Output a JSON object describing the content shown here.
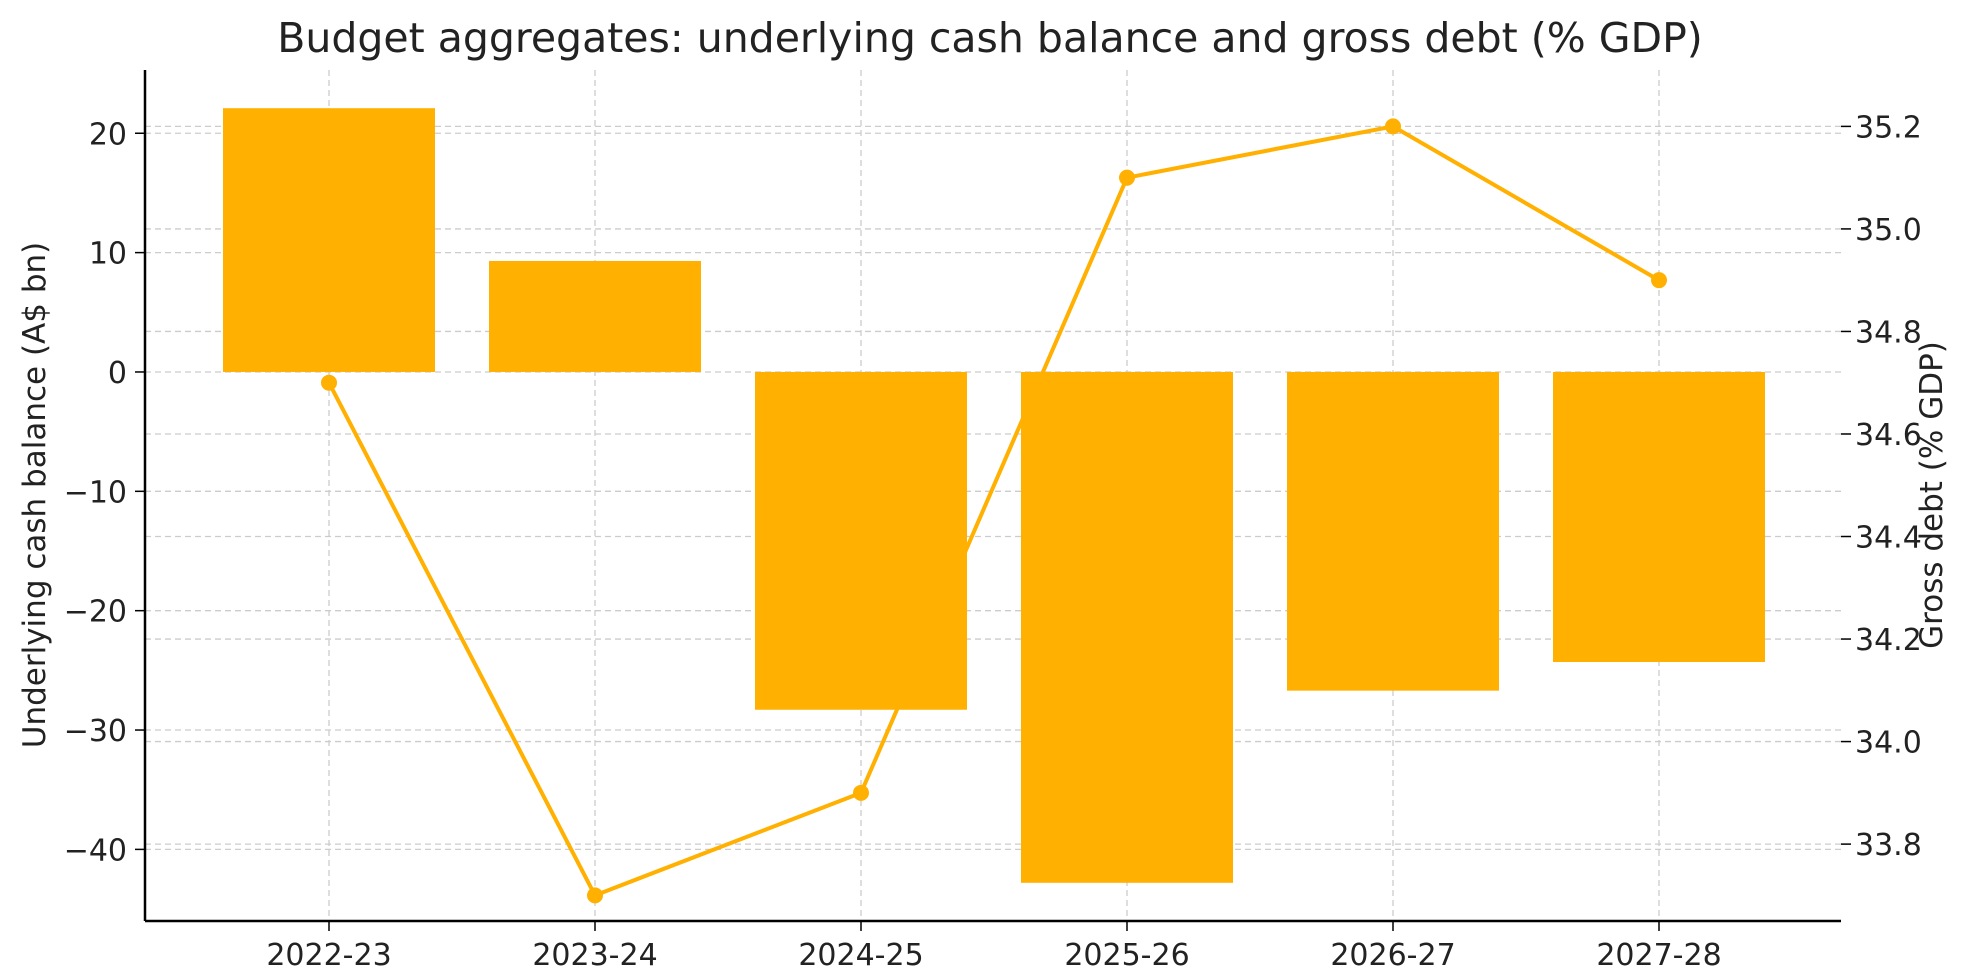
{
  "chart_data": {
    "type": "bar",
    "title": "Budget aggregates: underlying cash balance and gross debt (% GDP)",
    "categories": [
      "2022-23",
      "2023-24",
      "2024-25",
      "2025-26",
      "2026-27",
      "2027-28"
    ],
    "series": [
      {
        "axis": "left",
        "type": "bar",
        "values": [
          22.1,
          9.3,
          -28.3,
          -42.8,
          -26.7,
          -24.3
        ],
        "color": "#FFB000"
      },
      {
        "axis": "right",
        "type": "line",
        "values": [
          34.7,
          33.7,
          33.9,
          35.1,
          35.2,
          34.9
        ],
        "color": "#FFB000"
      }
    ],
    "ylabel": "Underlying cash balance (A$ bn)",
    "y2label": "Gross debt (% GDP)",
    "ylim": [
      -46,
      25.3
    ],
    "y2lim": [
      33.65,
      35.31
    ],
    "yticks": [
      -40,
      -30,
      -20,
      -10,
      0,
      10,
      20
    ],
    "y2ticks": [
      33.8,
      34.0,
      34.2,
      34.4,
      34.6,
      34.8,
      35.0,
      35.2
    ],
    "grid": true,
    "legend": "none"
  },
  "style": {
    "bar_color": "#FFB000",
    "line_color": "#FFB000",
    "title_color": "#333333",
    "text_color": "#222222",
    "grid_color": "#cccccc",
    "axis_color": "#000000"
  }
}
